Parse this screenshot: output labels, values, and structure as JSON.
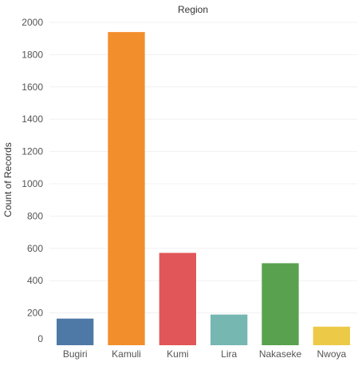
{
  "chart_data": {
    "type": "bar",
    "title": "Region",
    "xlabel": "",
    "ylabel": "Count of Records",
    "categories": [
      "Bugiri",
      "Kamuli",
      "Kumi",
      "Lira",
      "Nakaseke",
      "Nwoya"
    ],
    "values": [
      165,
      1940,
      572,
      190,
      508,
      115
    ],
    "colors": [
      "#4e79a7",
      "#f28e2b",
      "#e15759",
      "#76b7b2",
      "#59a14f",
      "#edc948"
    ],
    "ylim": [
      0,
      2000
    ],
    "yticks": [
      0,
      200,
      400,
      600,
      800,
      1000,
      1200,
      1400,
      1600,
      1800,
      2000
    ],
    "grid": true
  }
}
